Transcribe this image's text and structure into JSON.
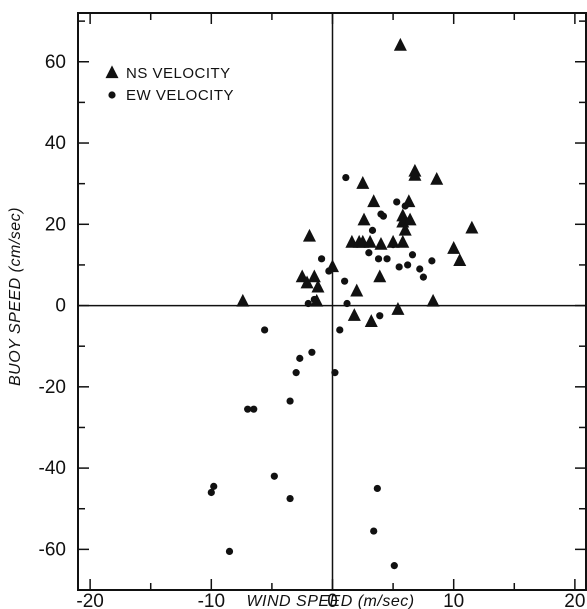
{
  "chart_data": {
    "type": "scatter",
    "xlabel": "WIND SPEED (m/sec)",
    "ylabel": "BUOY SPEED (cm/sec)",
    "xlim": [
      -21,
      21
    ],
    "ylim": [
      -70,
      72
    ],
    "x_ticks": [
      -20,
      -10,
      0,
      10,
      20
    ],
    "y_ticks": [
      -60,
      -40,
      -20,
      0,
      20,
      40,
      60
    ],
    "x_tick_labels": [
      "-20",
      "-10",
      "0",
      "10",
      "20"
    ],
    "y_tick_labels": [
      "-60",
      "-40",
      "-20",
      "0",
      "20",
      "40",
      "60"
    ],
    "grid": false,
    "legend_position": "top-left",
    "series": [
      {
        "name": "NS VELOCITY",
        "marker": "triangle",
        "color": "#111111",
        "points": [
          [
            5.6,
            64.0
          ],
          [
            -7.4,
            1.0
          ],
          [
            -1.9,
            17.0
          ],
          [
            -2.5,
            7.0
          ],
          [
            -2.1,
            5.5
          ],
          [
            -1.5,
            7.0
          ],
          [
            -1.2,
            4.5
          ],
          [
            -1.3,
            1.0
          ],
          [
            0.0,
            9.5
          ],
          [
            1.6,
            15.5
          ],
          [
            2.2,
            15.5
          ],
          [
            2.5,
            15.5
          ],
          [
            3.1,
            15.5
          ],
          [
            2.6,
            21.0
          ],
          [
            3.4,
            25.5
          ],
          [
            2.5,
            30.0
          ],
          [
            1.8,
            -2.5
          ],
          [
            2.0,
            3.5
          ],
          [
            3.2,
            -4.0
          ],
          [
            3.9,
            7.0
          ],
          [
            4.0,
            15.0
          ],
          [
            5.0,
            15.5
          ],
          [
            5.8,
            22.0
          ],
          [
            5.8,
            20.5
          ],
          [
            6.3,
            25.5
          ],
          [
            6.8,
            33.0
          ],
          [
            6.8,
            32.0
          ],
          [
            6.4,
            21.0
          ],
          [
            5.4,
            -1.0
          ],
          [
            8.6,
            31.0
          ],
          [
            5.8,
            15.5
          ],
          [
            8.3,
            1.0
          ],
          [
            10.0,
            14.0
          ],
          [
            10.5,
            11.0
          ],
          [
            11.5,
            19.0
          ],
          [
            6.0,
            18.5
          ]
        ]
      },
      {
        "name": "EW VELOCITY",
        "marker": "circle",
        "color": "#111111",
        "points": [
          [
            -10.0,
            -46.0
          ],
          [
            -9.8,
            -44.5
          ],
          [
            -8.5,
            -60.5
          ],
          [
            -7.0,
            -25.5
          ],
          [
            -6.5,
            -25.5
          ],
          [
            -5.6,
            -6.0
          ],
          [
            -4.8,
            -42.0
          ],
          [
            -3.5,
            -47.5
          ],
          [
            -3.5,
            -23.5
          ],
          [
            -3.0,
            -16.5
          ],
          [
            -2.7,
            -13.0
          ],
          [
            -1.7,
            -11.5
          ],
          [
            -2.0,
            0.5
          ],
          [
            -1.5,
            1.5
          ],
          [
            -0.9,
            11.5
          ],
          [
            -0.3,
            8.5
          ],
          [
            0.2,
            -16.5
          ],
          [
            0.6,
            -6.0
          ],
          [
            1.0,
            6.0
          ],
          [
            1.2,
            0.5
          ],
          [
            1.1,
            31.5
          ],
          [
            3.0,
            13.0
          ],
          [
            3.3,
            18.5
          ],
          [
            3.8,
            11.5
          ],
          [
            4.0,
            22.5
          ],
          [
            4.2,
            22.0
          ],
          [
            4.5,
            11.5
          ],
          [
            5.0,
            15.0
          ],
          [
            5.3,
            25.5
          ],
          [
            5.5,
            9.5
          ],
          [
            6.0,
            24.5
          ],
          [
            6.6,
            12.5
          ],
          [
            6.2,
            10.0
          ],
          [
            7.2,
            9.0
          ],
          [
            7.5,
            7.0
          ],
          [
            8.2,
            11.0
          ],
          [
            3.9,
            -2.5
          ],
          [
            3.7,
            -45.0
          ],
          [
            3.4,
            -55.5
          ],
          [
            5.1,
            -64.0
          ]
        ]
      }
    ]
  }
}
